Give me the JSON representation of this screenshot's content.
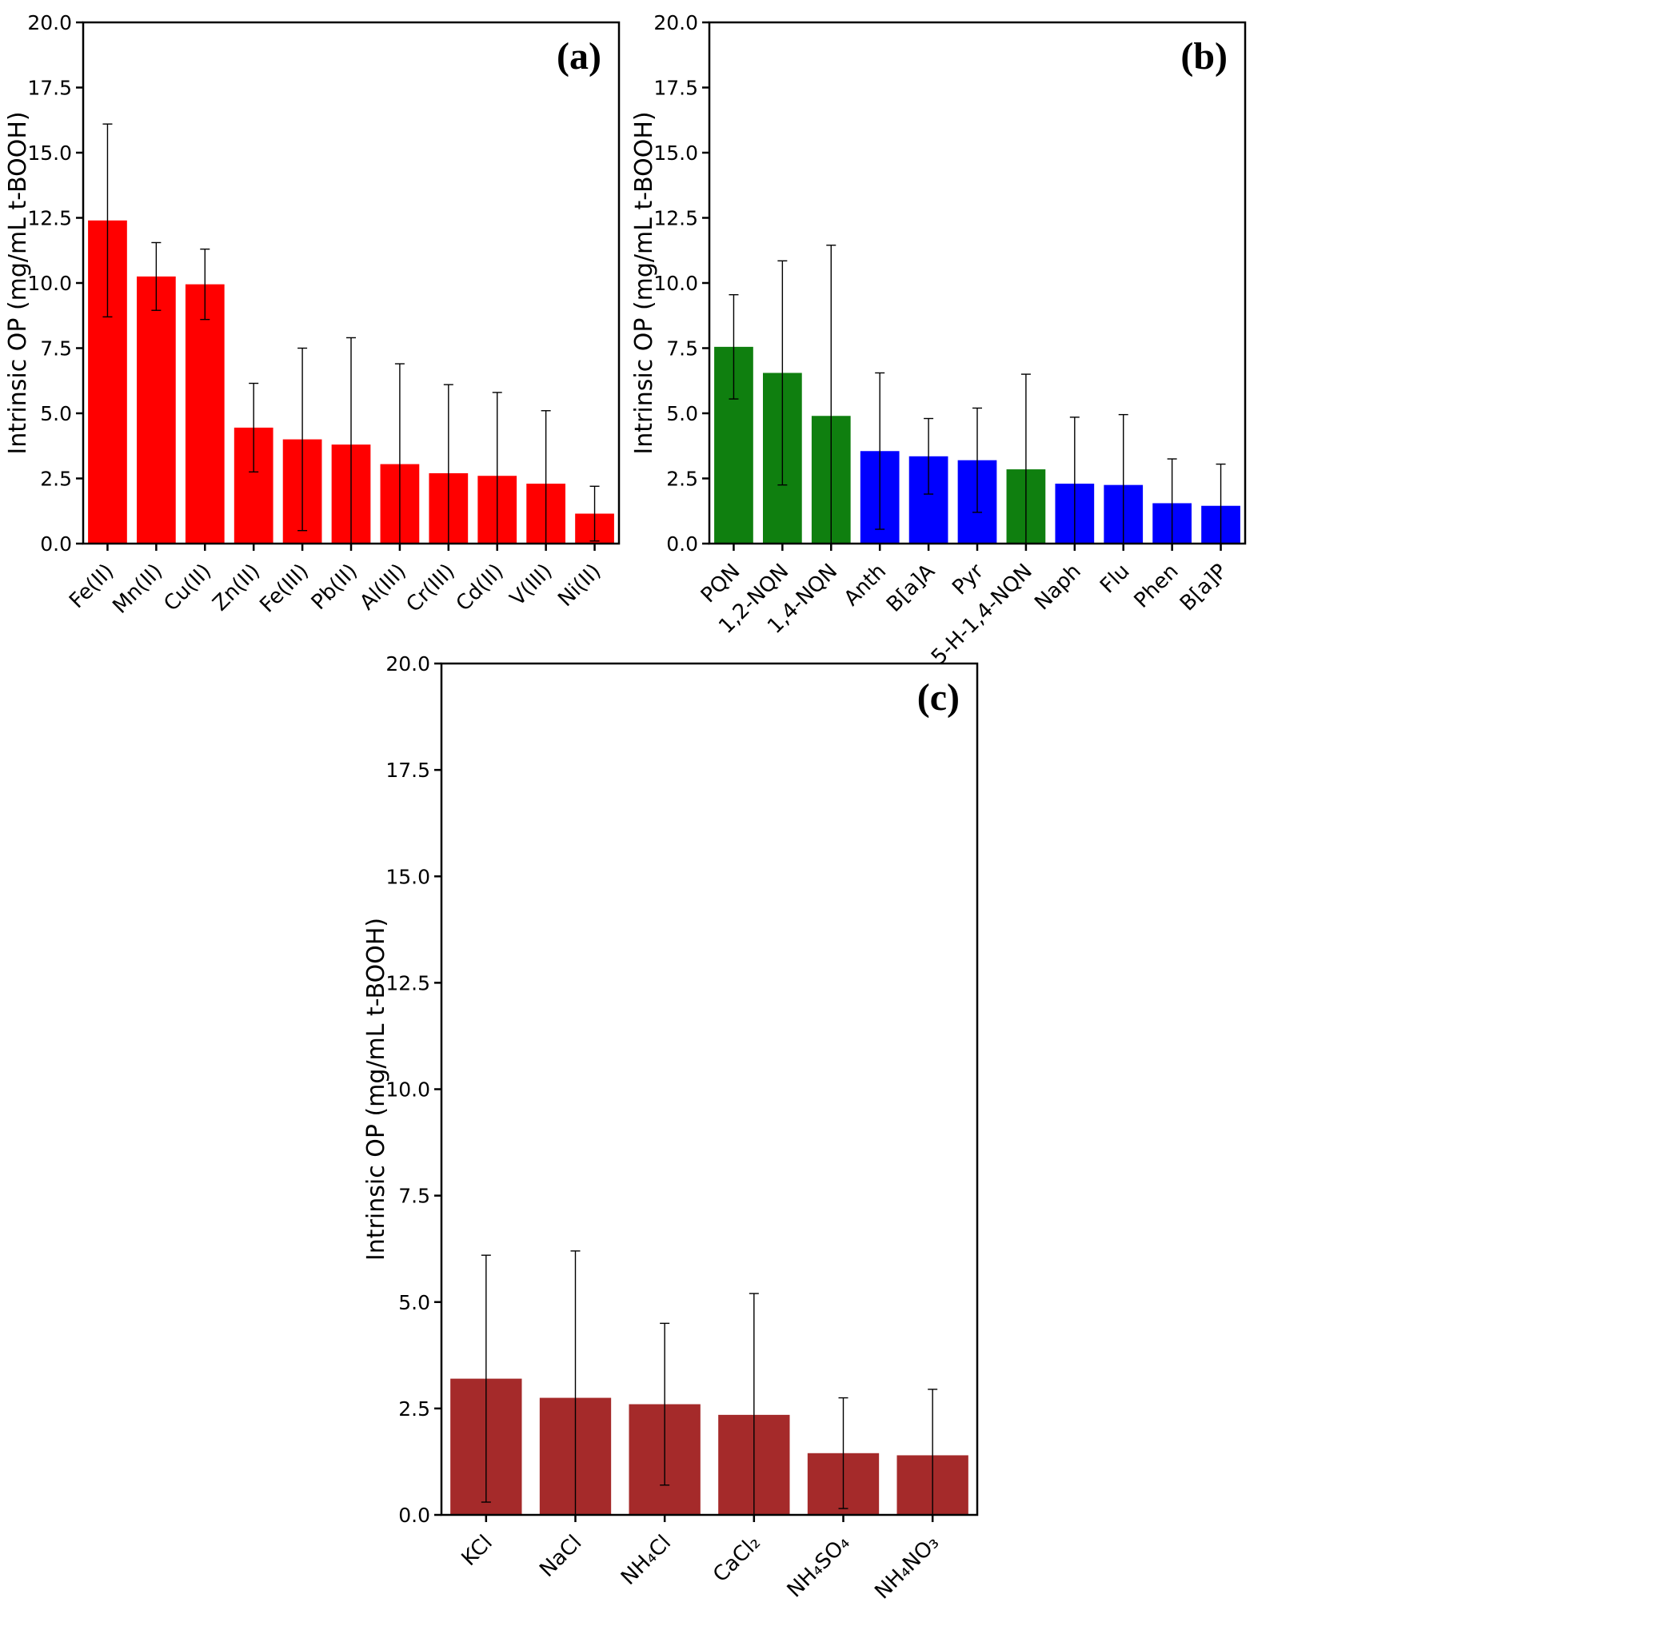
{
  "figure": {
    "background": "#ffffff",
    "error_bar_color": "#000000",
    "axis_color": "#000000"
  },
  "chart_data": [
    {
      "id": "a",
      "type": "bar",
      "panel_label": "(a)",
      "title": "",
      "xlabel": "",
      "ylabel": "Intrinsic OP (mg/mL t-BOOH)",
      "ylim": [
        0,
        20
      ],
      "yticks": [
        0.0,
        2.5,
        5.0,
        7.5,
        10.0,
        12.5,
        15.0,
        17.5,
        20.0
      ],
      "grid": false,
      "legend": "none",
      "categories": [
        "Fe(II)",
        "Mn(II)",
        "Cu(II)",
        "Zn(II)",
        "Fe(III)",
        "Pb(II)",
        "Al(III)",
        "Cr(III)",
        "Cd(II)",
        "V(III)",
        "Ni(II)"
      ],
      "values": [
        12.4,
        10.25,
        9.95,
        4.45,
        4.0,
        3.8,
        3.05,
        2.7,
        2.6,
        2.3,
        1.15
      ],
      "errors": [
        3.7,
        1.3,
        1.35,
        1.7,
        3.5,
        4.1,
        3.85,
        3.4,
        3.2,
        2.8,
        1.05
      ],
      "colors": [
        "#ff0000",
        "#ff0000",
        "#ff0000",
        "#ff0000",
        "#ff0000",
        "#ff0000",
        "#ff0000",
        "#ff0000",
        "#ff0000",
        "#ff0000",
        "#ff0000"
      ]
    },
    {
      "id": "b",
      "type": "bar",
      "panel_label": "(b)",
      "title": "",
      "xlabel": "",
      "ylabel": "Intrinsic OP (mg/mL t-BOOH)",
      "ylim": [
        0,
        20
      ],
      "yticks": [
        0.0,
        2.5,
        5.0,
        7.5,
        10.0,
        12.5,
        15.0,
        17.5,
        20.0
      ],
      "grid": false,
      "legend": "none",
      "categories": [
        "PQN",
        "1,2-NQN",
        "1,4-NQN",
        "Anth",
        "B[a]A",
        "Pyr",
        "5-H-1,4-NQN",
        "Naph",
        "Flu",
        "Phen",
        "B[a]P"
      ],
      "values": [
        7.55,
        6.55,
        4.9,
        3.55,
        3.35,
        3.2,
        2.85,
        2.3,
        2.25,
        1.55,
        1.45
      ],
      "errors": [
        2.0,
        4.3,
        6.55,
        3.0,
        1.45,
        2.0,
        3.65,
        2.55,
        2.7,
        1.7,
        1.6
      ],
      "colors": [
        "#0f7f0f",
        "#0f7f0f",
        "#0f7f0f",
        "#0000ff",
        "#0000ff",
        "#0000ff",
        "#0f7f0f",
        "#0000ff",
        "#0000ff",
        "#0000ff",
        "#0000ff"
      ]
    },
    {
      "id": "c",
      "type": "bar",
      "panel_label": "(c)",
      "title": "",
      "xlabel": "",
      "ylabel": "Intrinsic OP (mg/mL t-BOOH)",
      "ylim": [
        0,
        20
      ],
      "yticks": [
        0.0,
        2.5,
        5.0,
        7.5,
        10.0,
        12.5,
        15.0,
        17.5,
        20.0
      ],
      "grid": false,
      "legend": "none",
      "categories": [
        "KCl",
        "NaCl",
        "NH₄Cl",
        "CaCl₂",
        "NH₄SO₄",
        "NH₄NO₃"
      ],
      "values": [
        3.2,
        2.75,
        2.6,
        2.35,
        1.45,
        1.4
      ],
      "errors": [
        2.9,
        3.45,
        1.9,
        2.85,
        1.3,
        1.55
      ],
      "colors": [
        "#a52a2a",
        "#a52a2a",
        "#a52a2a",
        "#a52a2a",
        "#a52a2a",
        "#a52a2a"
      ]
    }
  ]
}
